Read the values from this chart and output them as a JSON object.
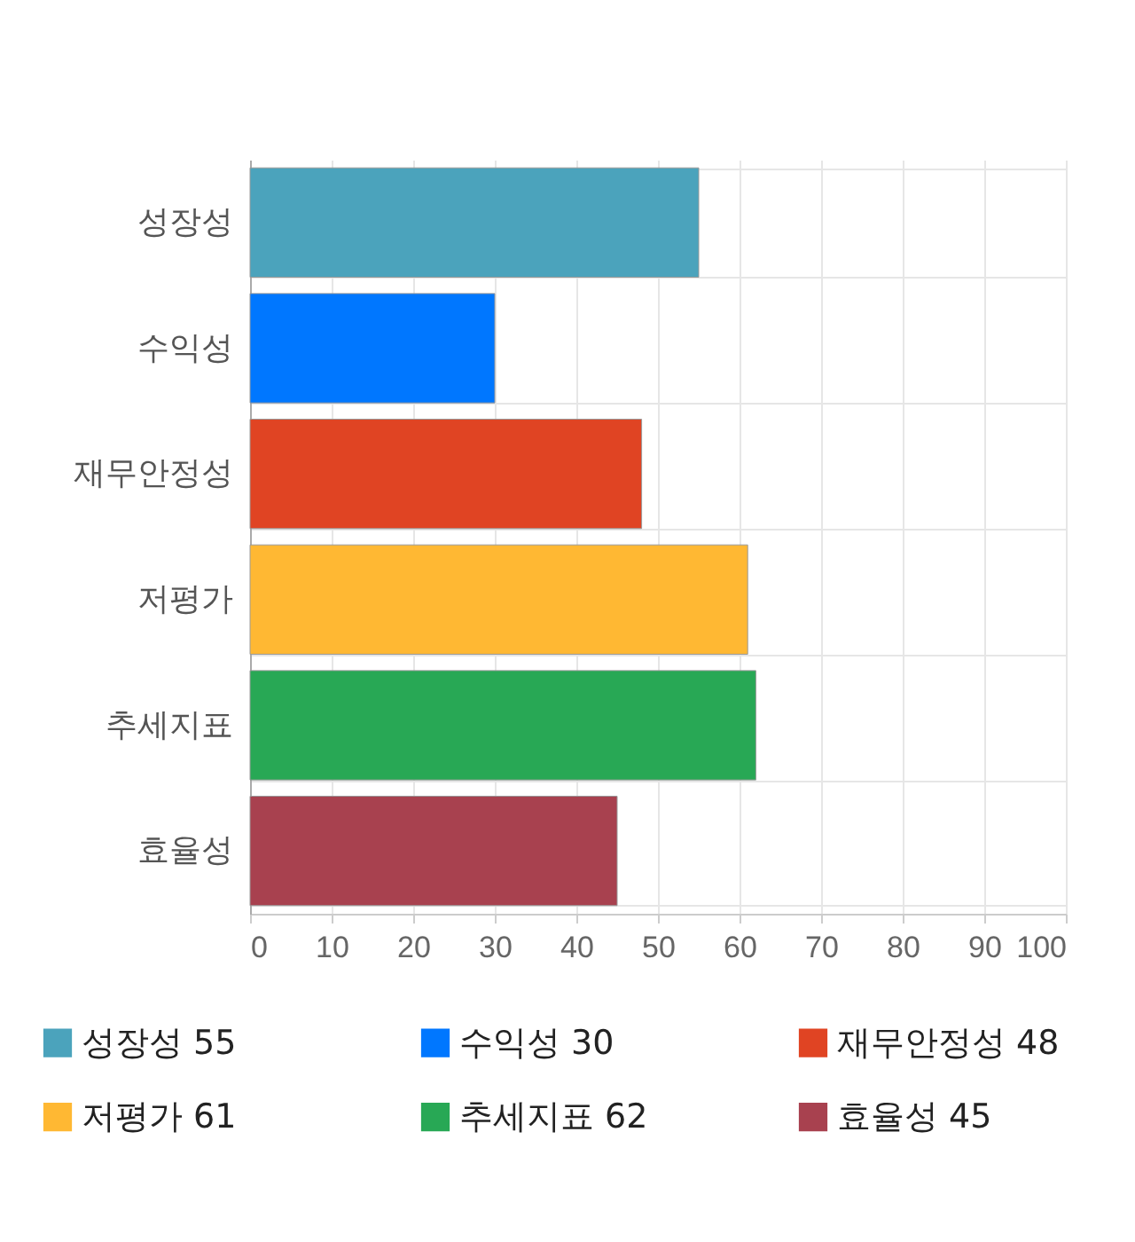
{
  "chart_data": {
    "type": "bar",
    "orientation": "horizontal",
    "categories": [
      "성장성",
      "수익성",
      "재무안정성",
      "저평가",
      "추세지표",
      "효율성"
    ],
    "series": [
      {
        "name": "성장성 55",
        "color": "#4ba3bc",
        "values": [
          55,
          null,
          null,
          null,
          null,
          null
        ]
      },
      {
        "name": "수익성 30",
        "color": "#0077ff",
        "values": [
          null,
          30,
          null,
          null,
          null,
          null
        ]
      },
      {
        "name": "재무안정성 48",
        "color": "#e04423",
        "values": [
          null,
          null,
          48,
          null,
          null,
          null
        ]
      },
      {
        "name": "저평가 61",
        "color": "#ffb833",
        "values": [
          null,
          null,
          null,
          61,
          null,
          null
        ]
      },
      {
        "name": "추세지표 62",
        "color": "#28a855",
        "values": [
          null,
          null,
          null,
          null,
          62,
          null
        ]
      },
      {
        "name": "효율성 45",
        "color": "#a8414f",
        "values": [
          null,
          null,
          null,
          null,
          null,
          45
        ]
      }
    ],
    "xlim": [
      0,
      100
    ],
    "xticks": [
      0,
      10,
      20,
      30,
      40,
      50,
      60,
      70,
      80,
      90,
      100
    ],
    "grid": true,
    "legend": "bottom"
  }
}
